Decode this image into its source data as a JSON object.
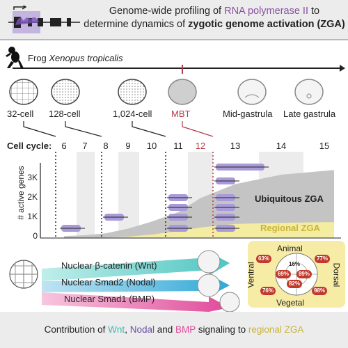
{
  "header": {
    "title_part1": "Genome-wide profiling of ",
    "title_highlight": "RNA polymerase II",
    "title_part2": " to",
    "title_line2_part1": "determine dynamics of ",
    "title_line2_bold": "zygotic genome activation (ZGA)"
  },
  "species": {
    "prefix": "Frog ",
    "name": "Xenopus tropicalis"
  },
  "stages": [
    {
      "label": "32-cell"
    },
    {
      "label": "128-cell"
    },
    {
      "label": "1,024-cell"
    },
    {
      "label": "MBT",
      "color": "#b33a4a"
    },
    {
      "label": "Mid-gastrula"
    },
    {
      "label": "Late gastrula"
    }
  ],
  "cell_cycle": {
    "label": "Cell cycle:",
    "numbers": [
      "6",
      "7",
      "8",
      "9",
      "10",
      "11",
      "12",
      "13",
      "14",
      "15"
    ],
    "highlight_color": "#b33a4a"
  },
  "chart": {
    "ylabel": "# active genes",
    "ticks": [
      "3K",
      "2K",
      "1K",
      "0"
    ],
    "ubiquitous_label": "Ubiquitous ZGA",
    "regional_label": "Regional ZGA",
    "regional_color": "#c9b43a"
  },
  "chart_data": {
    "type": "area",
    "ylabel": "# active genes",
    "ylim": [
      0,
      3500
    ],
    "x": [
      "6",
      "7",
      "8",
      "9",
      "10",
      "11",
      "12",
      "13",
      "14",
      "15"
    ],
    "series": [
      {
        "name": "Ubiquitous ZGA",
        "values": [
          80,
          120,
          200,
          400,
          700,
          1100,
          1700,
          2300,
          2700,
          2900
        ]
      },
      {
        "name": "Regional ZGA",
        "values": [
          0,
          0,
          20,
          60,
          150,
          300,
          450,
          600,
          650,
          680
        ]
      }
    ]
  },
  "signals": [
    {
      "label": "Nuclear β-catenin (Wnt)",
      "color": "#4fc5c0"
    },
    {
      "label": "Nuclear Smad2 (Nodal)",
      "color": "#2fa8d6"
    },
    {
      "label": "Nuclear Smad1 (BMP)",
      "color": "#e04a9a"
    }
  ],
  "legend": {
    "animal": "Animal",
    "vegetal": "Vegetal",
    "ventral": "Ventral",
    "dorsal": "Dorsal",
    "values": [
      "63%",
      "77%",
      "16%",
      "69%",
      "89%",
      "82%",
      "76%",
      "98%"
    ]
  },
  "footer": {
    "part1": "Contribution of ",
    "wnt": "Wnt",
    "comma": ", ",
    "nodal": "Nodal",
    "and": " and ",
    "bmp": "BMP",
    "part2": " signaling to ",
    "regional": "regional ZGA",
    "colors": {
      "wnt": "#3fb8b3",
      "nodal": "#6a4fa3",
      "bmp": "#e04a9a",
      "regional": "#c9b43a"
    }
  }
}
